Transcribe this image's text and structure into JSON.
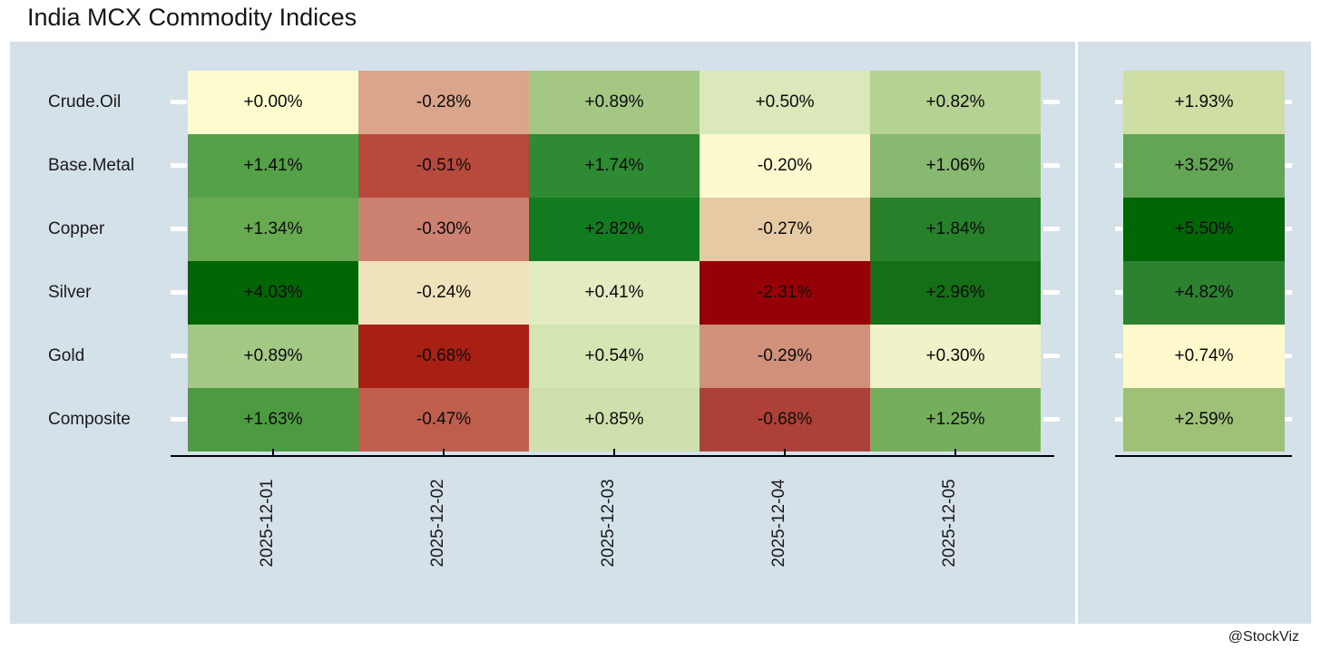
{
  "page": {
    "title": "India MCX Commodity Indices",
    "credit": "@StockViz",
    "colors": {
      "panel_bg": "#d5e1e8",
      "axis": "#000000",
      "tick_dash": "#ffffff",
      "text": "#1a1a1a"
    }
  },
  "chart_data": {
    "type": "heatmap",
    "title": "India MCX Commodity Indices",
    "x_categories": [
      "2025-12-01",
      "2025-12-02",
      "2025-12-03",
      "2025-12-04",
      "2025-12-05"
    ],
    "y_categories": [
      "Crude.Oil",
      "Base.Metal",
      "Copper",
      "Silver",
      "Gold",
      "Composite"
    ],
    "unit": "percent daily return",
    "values": [
      [
        0.0,
        -0.28,
        0.89,
        0.5,
        0.82
      ],
      [
        1.41,
        -0.51,
        1.74,
        -0.2,
        1.06
      ],
      [
        1.34,
        -0.3,
        2.82,
        -0.27,
        1.84
      ],
      [
        4.03,
        -0.24,
        0.41,
        -2.31,
        2.96
      ],
      [
        0.89,
        -0.68,
        0.54,
        -0.29,
        0.3
      ],
      [
        1.63,
        -0.47,
        0.85,
        -0.68,
        1.25
      ]
    ],
    "cell_labels": [
      [
        "+0.00%",
        "-0.28%",
        "+0.89%",
        "+0.50%",
        "+0.82%"
      ],
      [
        "+1.41%",
        "-0.51%",
        "+1.74%",
        "-0.20%",
        "+1.06%"
      ],
      [
        "+1.34%",
        "-0.30%",
        "+2.82%",
        "-0.27%",
        "+1.84%"
      ],
      [
        "+4.03%",
        "-0.24%",
        "+0.41%",
        "-2.31%",
        "+2.96%"
      ],
      [
        "+0.89%",
        "-0.68%",
        "+0.54%",
        "-0.29%",
        "+0.30%"
      ],
      [
        "+1.63%",
        "-0.47%",
        "+0.85%",
        "-0.68%",
        "+1.25%"
      ]
    ],
    "cell_colors": [
      [
        "#fcfccf",
        "#dba58b",
        "#a4c883",
        "#dbe8b9",
        "#b6d293"
      ],
      [
        "#55a147",
        "#b84a3d",
        "#2e8b33",
        "#fcf9cf",
        "#87b971"
      ],
      [
        "#68aa51",
        "#cd8170",
        "#137b1f",
        "#e5caa3",
        "#26812a"
      ],
      [
        "#026605",
        "#f0e2ba",
        "#e2ecc0",
        "#970006",
        "#156f16"
      ],
      [
        "#a4c985",
        "#a81f14",
        "#d6e5b4",
        "#d1907a",
        "#f2f2ca"
      ],
      [
        "#4d9b41",
        "#c05e4e",
        "#cfe0ac",
        "#ae4137",
        "#75ae5c"
      ]
    ],
    "summary_column": {
      "values": [
        1.93,
        3.52,
        5.5,
        4.82,
        0.74,
        2.59
      ],
      "labels": [
        "+1.93%",
        "+3.52%",
        "+5.50%",
        "+4.82%",
        "+0.74%",
        "+2.59%"
      ],
      "colors": [
        "#cfdfa4",
        "#64a455",
        "#016706",
        "#2d8230",
        "#fdf9cd",
        "#9fc077"
      ]
    },
    "color_scale": "RdYlGn: red = negative, pale yellow = near zero, green = positive; normalized per column",
    "legend": "none",
    "grid": "off"
  }
}
